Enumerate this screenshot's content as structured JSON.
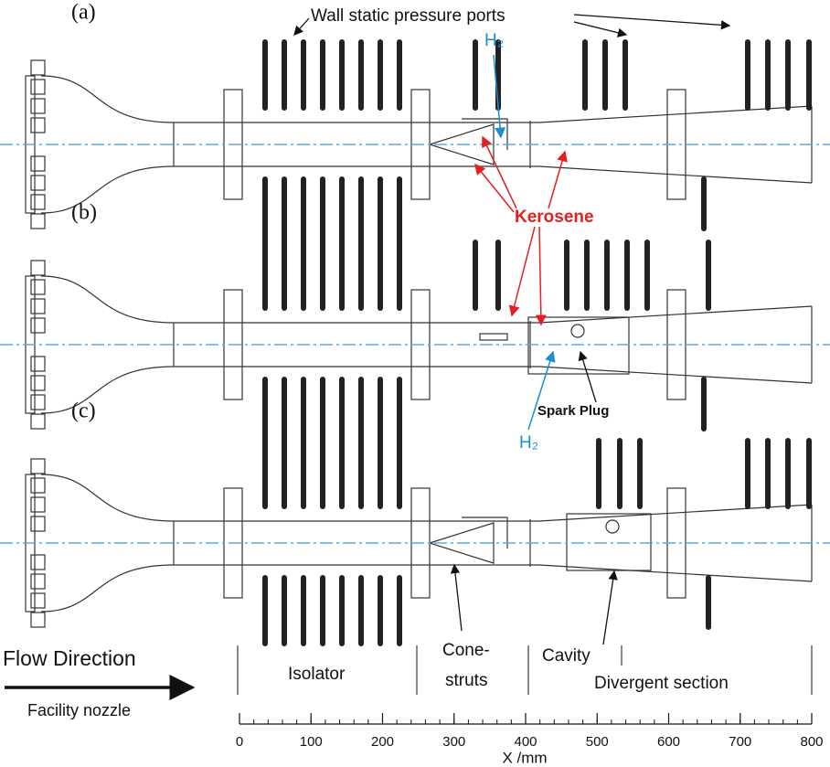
{
  "panels": [
    {
      "label": "(a)"
    },
    {
      "label": "(b)"
    },
    {
      "label": "(c)"
    }
  ],
  "annotations": {
    "ports": "Wall static pressure ports",
    "hydrogen_a": "H₂",
    "kerosene": "Kerosene",
    "spark_plug": "Spark Plug",
    "hydrogen_b": "H₂"
  },
  "sections": {
    "flow": "Flow Direction",
    "nozzle": "Facility nozzle",
    "isolator": "Isolator",
    "cone_struts": [
      "Cone-",
      "struts"
    ],
    "cavity": "Cavity",
    "divergent": "Divergent section"
  },
  "axis": {
    "label": "X /mm",
    "xlim": [
      0,
      800
    ],
    "xticks": [
      0,
      100,
      200,
      300,
      400,
      500,
      600,
      700,
      800
    ]
  }
}
